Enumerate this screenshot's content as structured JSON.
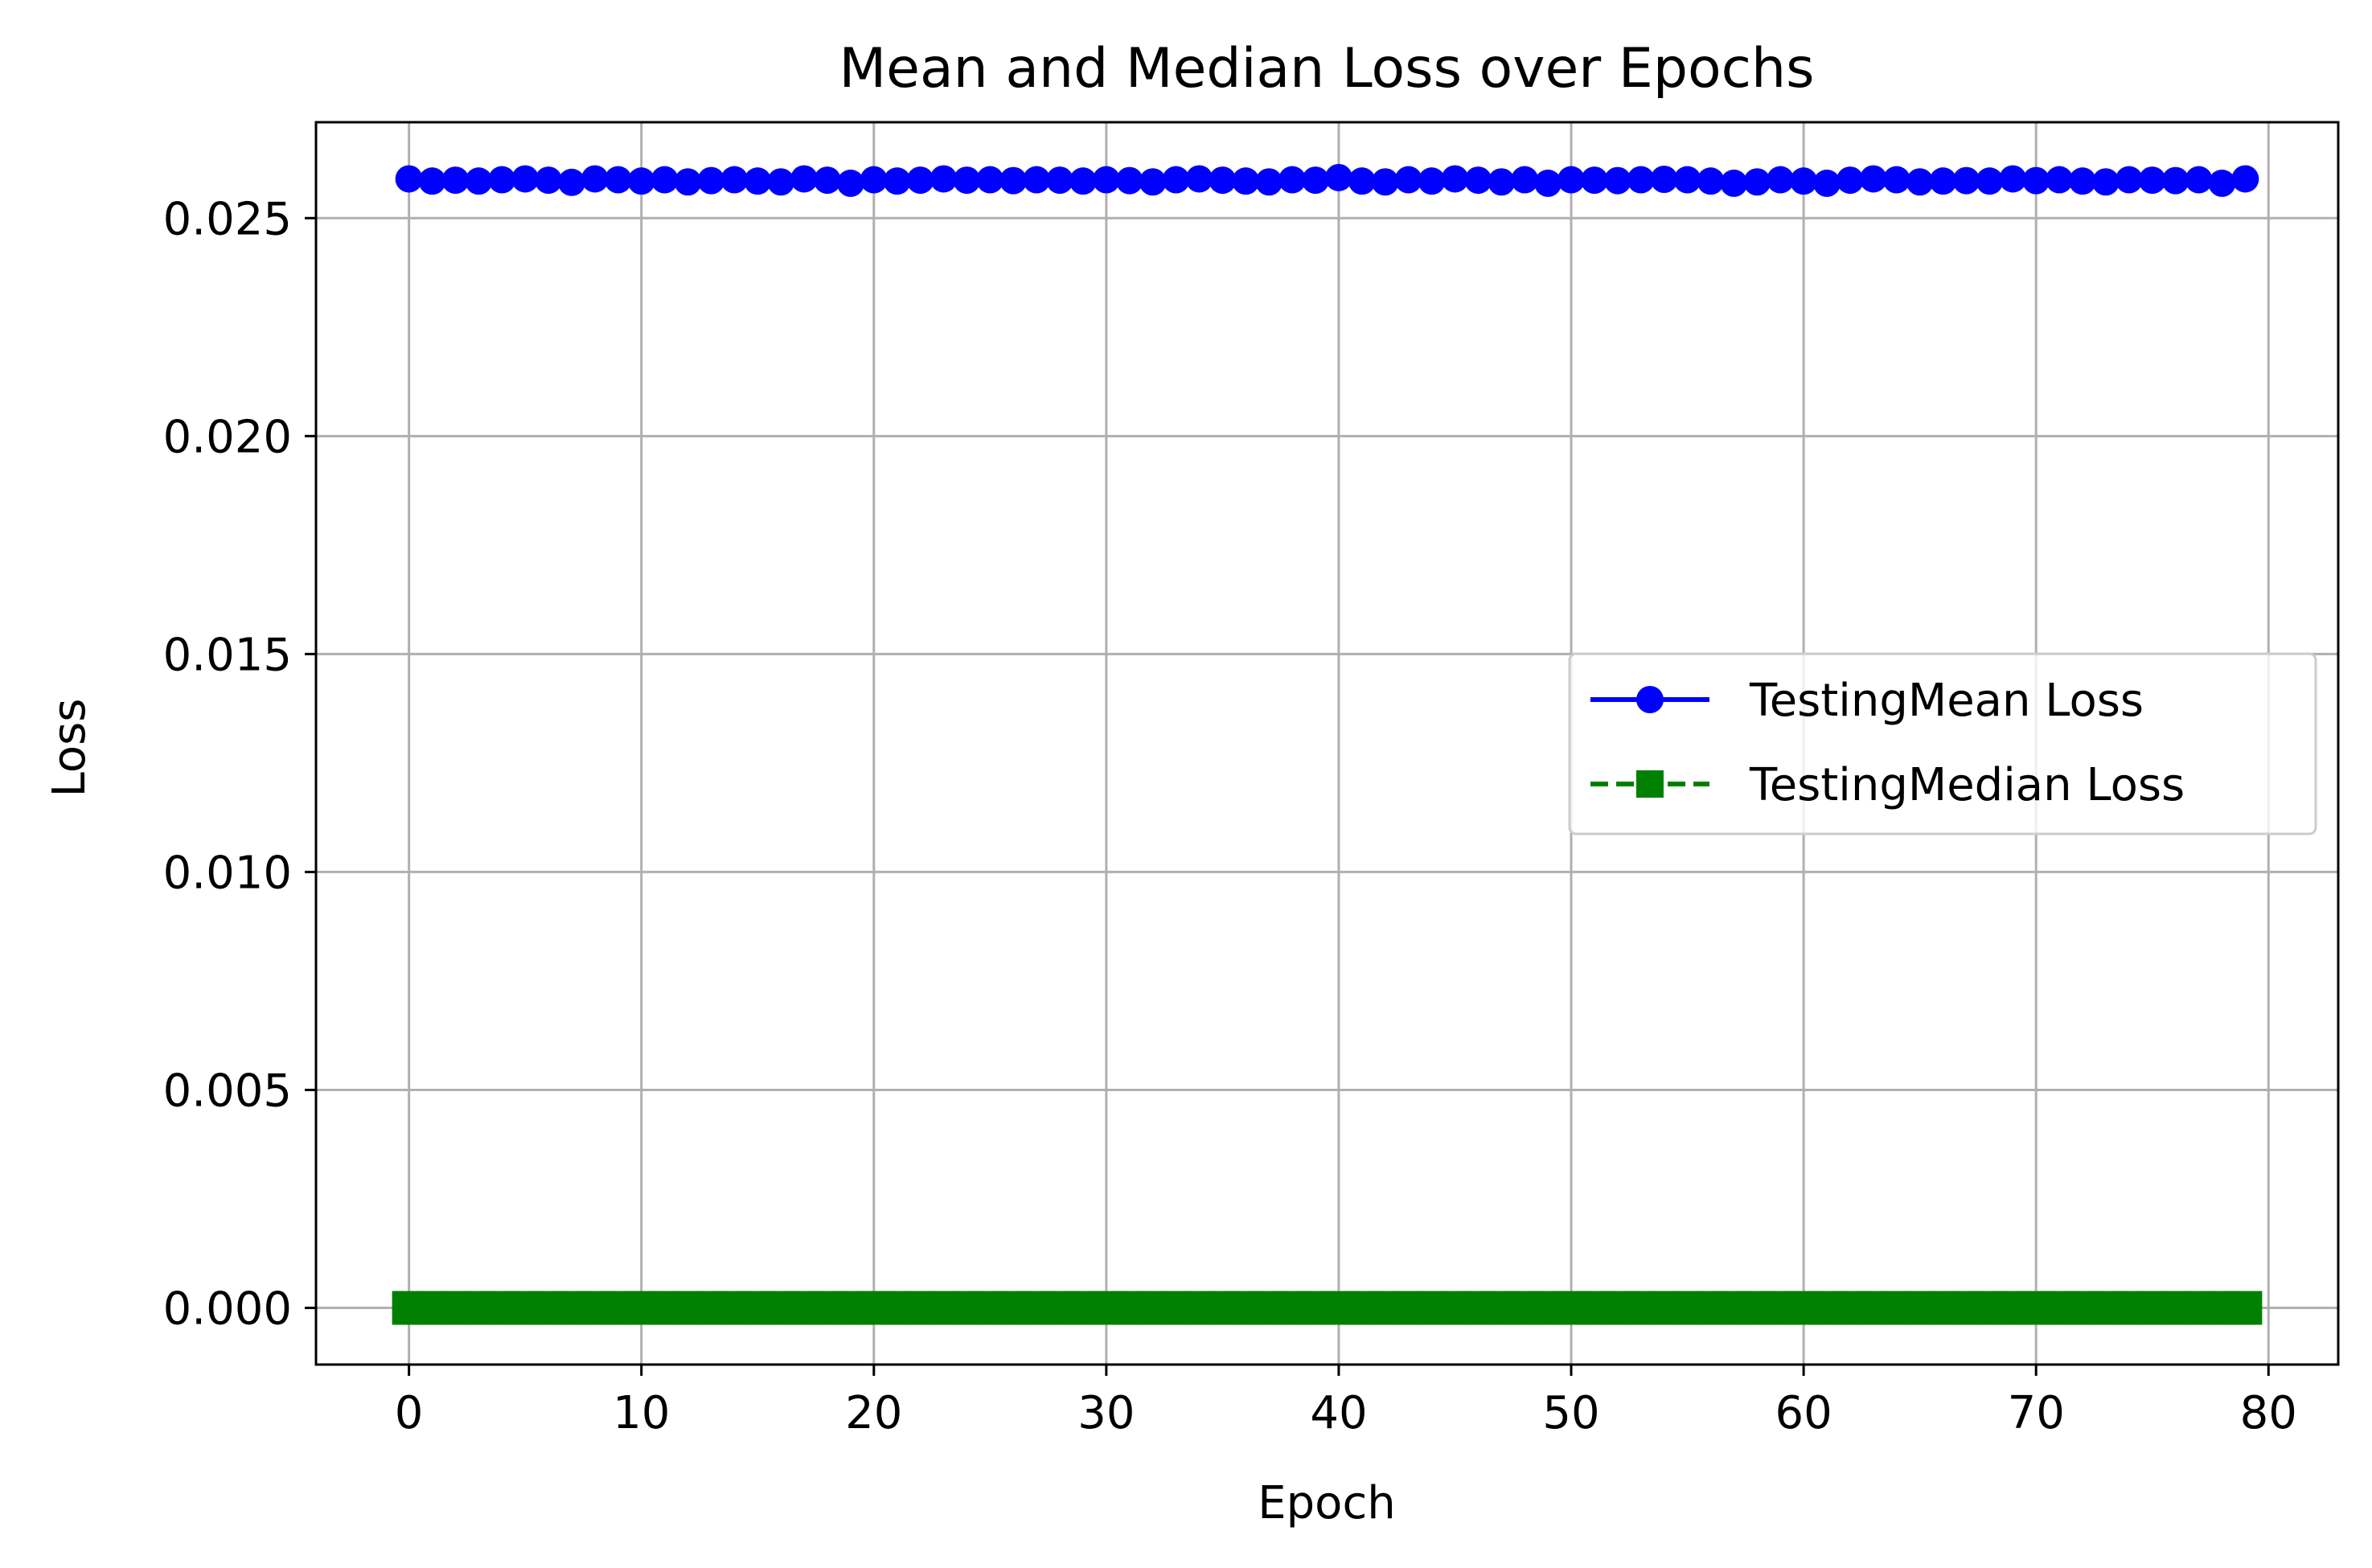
{
  "chart_data": {
    "type": "line",
    "title": "Mean and Median Loss over Epochs",
    "xlabel": "Epoch",
    "ylabel": "Loss",
    "xlim": [
      -4,
      83
    ],
    "ylim": [
      -0.0013,
      0.0272
    ],
    "xticks": [
      0,
      10,
      20,
      30,
      40,
      50,
      60,
      70,
      80
    ],
    "xtick_labels": [
      "0",
      "10",
      "20",
      "30",
      "40",
      "50",
      "60",
      "70",
      "80"
    ],
    "yticks": [
      0.0,
      0.005,
      0.01,
      0.015,
      0.02,
      0.025
    ],
    "ytick_labels": [
      "0.000",
      "0.005",
      "0.010",
      "0.015",
      "0.020",
      "0.025"
    ],
    "grid": true,
    "legend_position": "center-right",
    "x": [
      0,
      1,
      2,
      3,
      4,
      5,
      6,
      7,
      8,
      9,
      10,
      11,
      12,
      13,
      14,
      15,
      16,
      17,
      18,
      19,
      20,
      21,
      22,
      23,
      24,
      25,
      26,
      27,
      28,
      29,
      30,
      31,
      32,
      33,
      34,
      35,
      36,
      37,
      38,
      39,
      40,
      41,
      42,
      43,
      44,
      45,
      46,
      47,
      48,
      49,
      50,
      51,
      52,
      53,
      54,
      55,
      56,
      57,
      58,
      59,
      60,
      61,
      62,
      63,
      64,
      65,
      66,
      67,
      68,
      69,
      70,
      71,
      72,
      73,
      74,
      75,
      76,
      77,
      78,
      79
    ],
    "series": [
      {
        "name": "TestingMean Loss",
        "color": "#0000ff",
        "marker": "circle",
        "linestyle": "solid",
        "values": [
          0.0259,
          0.02585,
          0.02587,
          0.02585,
          0.02588,
          0.0259,
          0.02587,
          0.02582,
          0.0259,
          0.02588,
          0.02585,
          0.02588,
          0.02583,
          0.02586,
          0.02588,
          0.02585,
          0.02583,
          0.0259,
          0.02587,
          0.0258,
          0.02588,
          0.02585,
          0.02587,
          0.0259,
          0.02587,
          0.02588,
          0.02586,
          0.02588,
          0.02587,
          0.02585,
          0.02588,
          0.02586,
          0.02583,
          0.02588,
          0.0259,
          0.02587,
          0.02585,
          0.02583,
          0.02588,
          0.02587,
          0.02593,
          0.02585,
          0.02583,
          0.02588,
          0.02585,
          0.0259,
          0.02587,
          0.02583,
          0.02588,
          0.0258,
          0.02588,
          0.02587,
          0.02586,
          0.02588,
          0.02589,
          0.02588,
          0.02585,
          0.0258,
          0.02583,
          0.02588,
          0.02585,
          0.0258,
          0.02587,
          0.0259,
          0.02588,
          0.02583,
          0.02585,
          0.02586,
          0.02585,
          0.0259,
          0.02586,
          0.02588,
          0.02585,
          0.02583,
          0.02588,
          0.02587,
          0.02586,
          0.02588,
          0.0258,
          0.0259
        ]
      },
      {
        "name": "TestingMedian Loss",
        "color": "#008000",
        "marker": "square",
        "linestyle": "dashed",
        "values": [
          0,
          0,
          0,
          0,
          0,
          0,
          0,
          0,
          0,
          0,
          0,
          0,
          0,
          0,
          0,
          0,
          0,
          0,
          0,
          0,
          0,
          0,
          0,
          0,
          0,
          0,
          0,
          0,
          0,
          0,
          0,
          0,
          0,
          0,
          0,
          0,
          0,
          0,
          0,
          0,
          0,
          0,
          0,
          0,
          0,
          0,
          0,
          0,
          0,
          0,
          0,
          0,
          0,
          0,
          0,
          0,
          0,
          0,
          0,
          0,
          0,
          0,
          0,
          0,
          0,
          0,
          0,
          0,
          0,
          0,
          0,
          0,
          0,
          0,
          0,
          0,
          0,
          0,
          0,
          0
        ]
      }
    ]
  }
}
